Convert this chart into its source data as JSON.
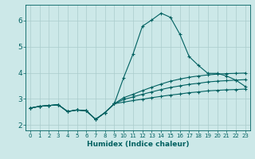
{
  "xlabel": "Humidex (Indice chaleur)",
  "bg_color": "#cce8e8",
  "line_color": "#006060",
  "grid_color": "#aacccc",
  "xlim": [
    -0.5,
    23.5
  ],
  "ylim": [
    1.8,
    6.6
  ],
  "yticks": [
    2,
    3,
    4,
    5,
    6
  ],
  "xticks": [
    0,
    1,
    2,
    3,
    4,
    5,
    6,
    7,
    8,
    9,
    10,
    11,
    12,
    13,
    14,
    15,
    16,
    17,
    18,
    19,
    20,
    21,
    22,
    23
  ],
  "lines": [
    [
      2.65,
      2.72,
      2.75,
      2.78,
      2.52,
      2.58,
      2.55,
      2.22,
      2.48,
      2.82,
      3.82,
      4.72,
      5.78,
      6.02,
      6.28,
      6.12,
      5.48,
      4.62,
      4.28,
      3.98,
      3.98,
      3.88,
      3.72,
      3.48
    ],
    [
      2.65,
      2.72,
      2.75,
      2.78,
      2.52,
      2.58,
      2.55,
      2.22,
      2.48,
      2.82,
      3.05,
      3.18,
      3.32,
      3.45,
      3.57,
      3.68,
      3.76,
      3.83,
      3.88,
      3.92,
      3.95,
      3.97,
      3.98,
      3.99
    ],
    [
      2.65,
      2.72,
      2.75,
      2.78,
      2.52,
      2.58,
      2.55,
      2.22,
      2.48,
      2.82,
      2.98,
      3.08,
      3.18,
      3.27,
      3.36,
      3.44,
      3.5,
      3.56,
      3.6,
      3.65,
      3.68,
      3.7,
      3.72,
      3.74
    ],
    [
      2.65,
      2.72,
      2.75,
      2.78,
      2.52,
      2.58,
      2.55,
      2.22,
      2.48,
      2.82,
      2.88,
      2.94,
      2.99,
      3.05,
      3.1,
      3.15,
      3.19,
      3.24,
      3.27,
      3.31,
      3.33,
      3.35,
      3.36,
      3.38
    ]
  ]
}
